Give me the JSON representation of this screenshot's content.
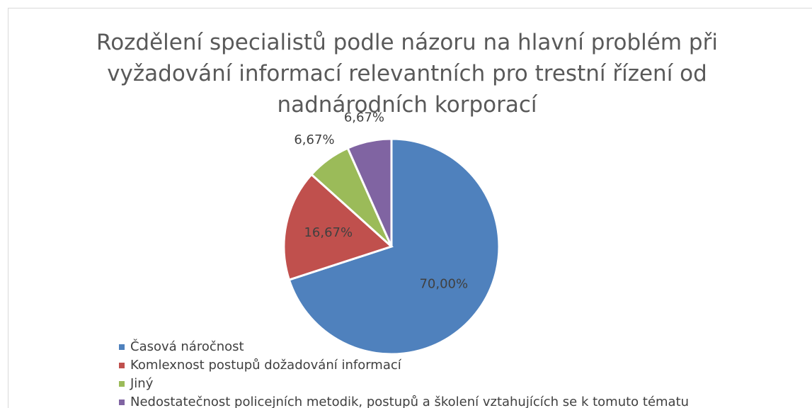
{
  "chart_data": {
    "type": "pie",
    "title": "Rozdělení specialistů podle názoru na hlavní problém při vyžadování informací relevantních pro trestní řízení od nadnárodních korporací",
    "categories": [
      "Časová náročnost",
      "Komlexnost postupů dožadování informací",
      "Jiný",
      "Nedostatečnost policejních metodik, postupů a školení vztahujících se k tomuto tématu"
    ],
    "values": [
      70,
      16.67,
      6.67,
      6.67
    ],
    "value_labels": [
      "70,00%",
      "16,67%",
      "6,67%",
      "6,67%"
    ],
    "colors": [
      "#4f81bd",
      "#c0504d",
      "#9bbb59",
      "#8064a2"
    ],
    "legend": "bottom-left"
  }
}
